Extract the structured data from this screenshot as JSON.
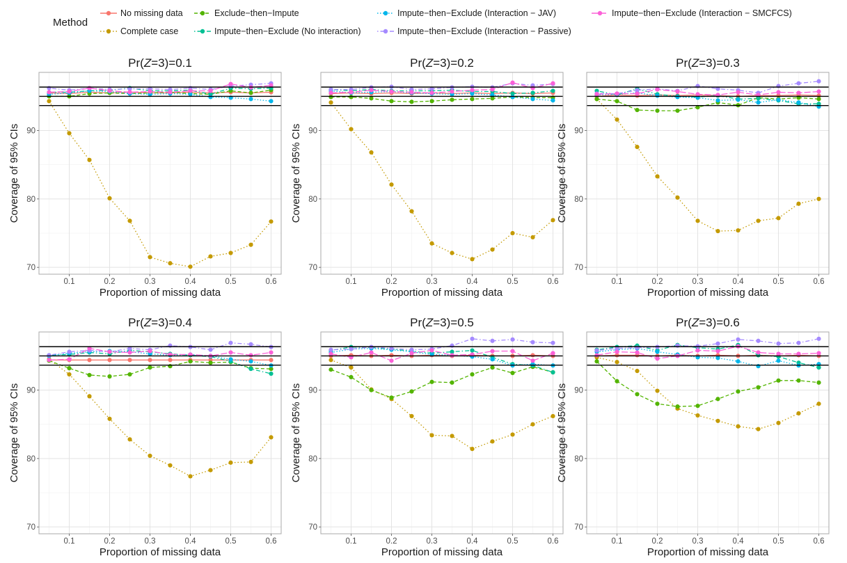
{
  "legend": {
    "title": "Method",
    "items": [
      {
        "label": "No missing data",
        "color": "#F8766D",
        "dash": "solid",
        "icon": "line-dot-icon"
      },
      {
        "label": "Complete case",
        "color": "#C49A00",
        "dash": "dotted",
        "icon": "line-dot-icon"
      },
      {
        "label": "Exclude−then−Impute",
        "color": "#53B400",
        "dash": "dashed",
        "icon": "line-dot-icon"
      },
      {
        "label": "Impute−then−Exclude (No interaction)",
        "color": "#00C094",
        "dash": "dotdash",
        "icon": "line-dot-icon"
      },
      {
        "label": "Impute−then−Exclude (Interaction − JAV)",
        "color": "#00B6EB",
        "dash": "dotdotted",
        "icon": "line-dot-icon"
      },
      {
        "label": "Impute−then−Exclude (Interaction − Passive)",
        "color": "#A58AFF",
        "dash": "dotdash",
        "icon": "line-dot-icon"
      },
      {
        "label": "Impute−then−Exclude (Interaction − SMCFCS)",
        "color": "#FB61D7",
        "dash": "longdash",
        "icon": "line-dot-icon"
      }
    ]
  },
  "chart_data": [
    {
      "type": "line",
      "title": "Pr(Z=3)=0.1",
      "title_prefix": "Pr(",
      "title_var": "Z",
      "title_suffix": "=3)=0.1",
      "xlabel": "Proportion of missing data",
      "ylabel": "Coverage of 95% CIs",
      "xlim": [
        0.025,
        0.625
      ],
      "ylim": [
        69,
        98.5
      ],
      "xticks": [
        "0.1",
        "0.2",
        "0.3",
        "0.4",
        "0.5",
        "0.6"
      ],
      "yticks": [
        "70",
        "80",
        "90"
      ],
      "hlines": [
        93.65,
        95,
        96.35
      ],
      "x": [
        0.05,
        0.1,
        0.15,
        0.2,
        0.25,
        0.3,
        0.35,
        0.4,
        0.45,
        0.5,
        0.55,
        0.6
      ],
      "series": [
        {
          "name": "No missing data",
          "values": [
            95.5,
            95.4,
            95.6,
            95.5,
            95.6,
            95.5,
            95.5,
            95.6,
            95.5,
            95.6,
            95.5,
            95.6
          ]
        },
        {
          "name": "Complete case",
          "values": [
            94.3,
            89.6,
            85.7,
            80.1,
            76.8,
            71.5,
            70.6,
            70.1,
            71.6,
            72.1,
            73.3,
            76.7
          ]
        },
        {
          "name": "Exclude−then−Impute",
          "values": [
            95.0,
            95.0,
            95.4,
            95.5,
            95.4,
            95.5,
            95.6,
            95.4,
            95.3,
            95.8,
            95.5,
            95.9
          ]
        },
        {
          "name": "Impute−then−Exclude (No interaction)",
          "values": [
            95.6,
            95.6,
            95.8,
            95.9,
            96.2,
            95.8,
            95.8,
            95.9,
            95.3,
            96.2,
            96.1,
            96.2
          ]
        },
        {
          "name": "Impute−then−Exclude (Interaction − JAV)",
          "values": [
            95.3,
            95.5,
            95.8,
            95.7,
            95.4,
            95.3,
            95.4,
            95.3,
            94.9,
            94.8,
            94.6,
            94.3
          ]
        },
        {
          "name": "Impute−then−Exclude (Interaction − Passive)",
          "values": [
            96.2,
            95.9,
            96.2,
            96.0,
            96.1,
            96.1,
            96.0,
            96.2,
            96.0,
            96.5,
            96.7,
            96.9
          ]
        },
        {
          "name": "Impute−then−Exclude (Interaction − SMCFCS)",
          "values": [
            95.6,
            95.7,
            96.2,
            95.8,
            95.6,
            95.7,
            95.6,
            95.8,
            95.8,
            96.8,
            96.3,
            96.6
          ]
        }
      ]
    },
    {
      "type": "line",
      "title": "Pr(Z=3)=0.2",
      "title_prefix": "Pr(",
      "title_var": "Z",
      "title_suffix": "=3)=0.2",
      "xlabel": "Proportion of missing data",
      "ylabel": "Coverage of 95% CIs",
      "xlim": [
        0.025,
        0.625
      ],
      "ylim": [
        69,
        98.5
      ],
      "xticks": [
        "0.1",
        "0.2",
        "0.3",
        "0.4",
        "0.5",
        "0.6"
      ],
      "yticks": [
        "70",
        "80",
        "90"
      ],
      "hlines": [
        93.65,
        95,
        96.35
      ],
      "x": [
        0.05,
        0.1,
        0.15,
        0.2,
        0.25,
        0.3,
        0.35,
        0.4,
        0.45,
        0.5,
        0.55,
        0.6
      ],
      "series": [
        {
          "name": "No missing data",
          "values": [
            95.4,
            95.5,
            95.4,
            95.5,
            95.4,
            95.5,
            95.4,
            95.5,
            95.4,
            95.5,
            95.4,
            95.5
          ]
        },
        {
          "name": "Complete case",
          "values": [
            94.1,
            90.2,
            86.8,
            82.1,
            78.2,
            73.5,
            72.1,
            71.2,
            72.6,
            75.0,
            74.4,
            76.9
          ]
        },
        {
          "name": "Exclude−then−Impute",
          "values": [
            94.9,
            94.9,
            94.7,
            94.3,
            94.2,
            94.3,
            94.5,
            94.6,
            94.7,
            94.9,
            94.8,
            94.8
          ]
        },
        {
          "name": "Impute−then−Exclude (No interaction)",
          "values": [
            96.0,
            95.8,
            96.0,
            95.8,
            95.8,
            95.8,
            95.9,
            95.7,
            95.7,
            95.4,
            95.5,
            95.8
          ]
        },
        {
          "name": "Impute−then−Exclude (Interaction − JAV)",
          "values": [
            95.8,
            95.5,
            95.6,
            95.7,
            95.5,
            95.4,
            95.3,
            95.4,
            95.2,
            94.9,
            94.6,
            94.4
          ]
        },
        {
          "name": "Impute−then−Exclude (Interaction − Passive)",
          "values": [
            96.0,
            96.0,
            96.3,
            96.4,
            96.0,
            96.1,
            96.3,
            96.4,
            96.3,
            96.9,
            96.6,
            96.8
          ]
        },
        {
          "name": "Impute−then−Exclude (Interaction − SMCFCS)",
          "values": [
            95.5,
            95.6,
            95.9,
            95.7,
            95.6,
            95.5,
            95.7,
            95.9,
            96.0,
            97.0,
            96.2,
            96.9
          ]
        }
      ]
    },
    {
      "type": "line",
      "title": "Pr(Z=3)=0.3",
      "title_prefix": "Pr(",
      "title_var": "Z",
      "title_suffix": "=3)=0.3",
      "xlabel": "Proportion of missing data",
      "ylabel": "Coverage of 95% CIs",
      "xlim": [
        0.025,
        0.625
      ],
      "ylim": [
        69,
        98.5
      ],
      "xticks": [
        "0.1",
        "0.2",
        "0.3",
        "0.4",
        "0.5",
        "0.6"
      ],
      "yticks": [
        "70",
        "80",
        "90"
      ],
      "hlines": [
        93.65,
        95,
        96.35
      ],
      "x": [
        0.05,
        0.1,
        0.15,
        0.2,
        0.25,
        0.3,
        0.35,
        0.4,
        0.45,
        0.5,
        0.55,
        0.6
      ],
      "series": [
        {
          "name": "No missing data",
          "values": [
            95.0,
            95.2,
            95.1,
            95.2,
            95.1,
            95.2,
            95.1,
            95.0,
            95.1,
            95.1,
            95.2,
            95.1
          ]
        },
        {
          "name": "Complete case",
          "values": [
            94.6,
            91.6,
            87.6,
            83.3,
            80.2,
            76.8,
            75.3,
            75.4,
            76.8,
            77.2,
            79.3,
            80.0
          ]
        },
        {
          "name": "Exclude−then−Impute",
          "values": [
            94.6,
            94.3,
            93.0,
            92.9,
            92.9,
            93.4,
            94.1,
            93.7,
            94.8,
            94.6,
            94.8,
            94.6
          ]
        },
        {
          "name": "Impute−then−Exclude (No interaction)",
          "values": [
            95.8,
            95.2,
            96.1,
            95.3,
            95.0,
            94.9,
            95.1,
            94.6,
            94.7,
            94.4,
            93.9,
            93.9
          ]
        },
        {
          "name": "Impute−then−Exclude (Interaction − JAV)",
          "values": [
            95.2,
            95.3,
            95.5,
            95.1,
            94.9,
            94.8,
            94.4,
            94.5,
            94.1,
            94.5,
            94.1,
            93.5
          ]
        },
        {
          "name": "Impute−then−Exclude (Interaction − Passive)",
          "values": [
            95.4,
            95.4,
            95.9,
            96.1,
            95.8,
            96.5,
            96.1,
            95.9,
            95.5,
            96.5,
            96.9,
            97.2
          ]
        },
        {
          "name": "Impute−then−Exclude (Interaction − SMCFCS)",
          "values": [
            95.3,
            95.4,
            95.4,
            96.0,
            95.7,
            95.3,
            95.2,
            95.6,
            95.2,
            95.6,
            95.5,
            95.7
          ]
        }
      ]
    },
    {
      "type": "line",
      "title": "Pr(Z=3)=0.4",
      "title_prefix": "Pr(",
      "title_var": "Z",
      "title_suffix": "=3)=0.4",
      "xlabel": "Proportion of missing data",
      "ylabel": "Coverage of 95% CIs",
      "xlim": [
        0.025,
        0.625
      ],
      "ylim": [
        69,
        98.5
      ],
      "xticks": [
        "0.1",
        "0.2",
        "0.3",
        "0.4",
        "0.5",
        "0.6"
      ],
      "yticks": [
        "70",
        "80",
        "90"
      ],
      "hlines": [
        93.65,
        95,
        96.35
      ],
      "x": [
        0.05,
        0.1,
        0.15,
        0.2,
        0.25,
        0.3,
        0.35,
        0.4,
        0.45,
        0.5,
        0.55,
        0.6
      ],
      "series": [
        {
          "name": "No missing data",
          "values": [
            94.4,
            94.4,
            94.4,
            94.4,
            94.4,
            94.4,
            94.4,
            94.4,
            94.4,
            94.4,
            94.4,
            94.4
          ]
        },
        {
          "name": "Complete case",
          "values": [
            94.5,
            92.3,
            89.1,
            85.8,
            82.8,
            80.4,
            79.0,
            77.4,
            78.3,
            79.4,
            79.5,
            83.1
          ]
        },
        {
          "name": "Exclude−then−Impute",
          "values": [
            94.3,
            93.2,
            92.2,
            92.0,
            92.3,
            93.3,
            93.5,
            94.2,
            94.0,
            94.1,
            93.2,
            93.1
          ]
        },
        {
          "name": "Impute−then−Exclude (No interaction)",
          "values": [
            95.1,
            95.2,
            95.5,
            95.3,
            95.8,
            95.6,
            95.3,
            95.1,
            94.9,
            94.2,
            93.1,
            92.4
          ]
        },
        {
          "name": "Impute−then−Exclude (Interaction − JAV)",
          "values": [
            95.0,
            95.4,
            95.6,
            95.7,
            95.6,
            95.3,
            95.1,
            95.2,
            95.0,
            94.5,
            94.2,
            93.6
          ]
        },
        {
          "name": "Impute−then−Exclude (Interaction − Passive)",
          "values": [
            95.1,
            95.6,
            95.8,
            95.6,
            96.1,
            95.9,
            96.5,
            96.3,
            95.9,
            96.9,
            96.7,
            96.3
          ]
        },
        {
          "name": "Impute−then−Exclude (Interaction − SMCFCS)",
          "values": [
            94.4,
            94.5,
            96.1,
            95.6,
            95.5,
            95.7,
            95.2,
            95.2,
            95.0,
            95.5,
            95.1,
            95.5
          ]
        }
      ]
    },
    {
      "type": "line",
      "title": "Pr(Z=3)=0.5",
      "title_prefix": "Pr(",
      "title_var": "Z",
      "title_suffix": "=3)=0.5",
      "xlabel": "Proportion of missing data",
      "ylabel": "Coverage of 95% CIs",
      "xlim": [
        0.025,
        0.625
      ],
      "ylim": [
        69,
        98.5
      ],
      "xticks": [
        "0.1",
        "0.2",
        "0.3",
        "0.4",
        "0.5",
        "0.6"
      ],
      "yticks": [
        "70",
        "80",
        "90"
      ],
      "hlines": [
        93.65,
        95,
        96.35
      ],
      "x": [
        0.05,
        0.1,
        0.15,
        0.2,
        0.25,
        0.3,
        0.35,
        0.4,
        0.45,
        0.5,
        0.55,
        0.6
      ],
      "series": [
        {
          "name": "No missing data",
          "values": [
            95.0,
            95.1,
            95.0,
            95.1,
            95.0,
            95.1,
            95.0,
            95.1,
            95.0,
            95.0,
            95.1,
            95.0
          ]
        },
        {
          "name": "Complete case",
          "values": [
            94.4,
            93.3,
            90.1,
            88.7,
            86.2,
            83.4,
            83.3,
            81.4,
            82.5,
            83.5,
            85.0,
            86.2
          ]
        },
        {
          "name": "Exclude−then−Impute",
          "values": [
            93.0,
            91.9,
            90.0,
            88.9,
            89.8,
            91.2,
            91.1,
            92.3,
            93.3,
            92.5,
            93.4,
            92.6
          ]
        },
        {
          "name": "Impute−then−Exclude (No interaction)",
          "values": [
            95.8,
            96.3,
            96.2,
            96.0,
            95.7,
            95.4,
            95.6,
            95.8,
            94.8,
            93.8,
            93.6,
            92.6
          ]
        },
        {
          "name": "Impute−then−Exclude (Interaction − JAV)",
          "values": [
            95.5,
            96.0,
            96.1,
            95.9,
            95.6,
            95.2,
            95.1,
            94.9,
            94.5,
            93.6,
            93.8,
            93.6
          ]
        },
        {
          "name": "Impute−then−Exclude (Interaction − Passive)",
          "values": [
            95.9,
            96.0,
            96.3,
            96.1,
            95.9,
            96.0,
            96.5,
            97.5,
            97.2,
            97.4,
            97.0,
            96.9
          ]
        },
        {
          "name": "Impute−then−Exclude (Interaction − SMCFCS)",
          "values": [
            95.3,
            94.8,
            95.5,
            94.3,
            95.4,
            95.8,
            95.1,
            95.2,
            95.7,
            95.7,
            94.3,
            95.4
          ]
        }
      ]
    },
    {
      "type": "line",
      "title": "Pr(Z=3)=0.6",
      "title_prefix": "Pr(",
      "title_var": "Z",
      "title_suffix": "=3)=0.6",
      "xlabel": "Proportion of missing data",
      "ylabel": "Coverage of 95% CIs",
      "xlim": [
        0.025,
        0.625
      ],
      "ylim": [
        69,
        98.5
      ],
      "xticks": [
        "0.1",
        "0.2",
        "0.3",
        "0.4",
        "0.5",
        "0.6"
      ],
      "yticks": [
        "70",
        "80",
        "90"
      ],
      "hlines": [
        93.65,
        95,
        96.35
      ],
      "x": [
        0.05,
        0.1,
        0.15,
        0.2,
        0.25,
        0.3,
        0.35,
        0.4,
        0.45,
        0.5,
        0.55,
        0.6
      ],
      "series": [
        {
          "name": "No missing data",
          "values": [
            95.0,
            95.1,
            95.1,
            95.0,
            95.1,
            95.0,
            95.1,
            95.0,
            95.1,
            95.0,
            95.1,
            95.0
          ]
        },
        {
          "name": "Complete case",
          "values": [
            94.8,
            94.1,
            92.8,
            89.9,
            87.3,
            86.3,
            85.5,
            84.7,
            84.3,
            85.2,
            86.6,
            88.0
          ]
        },
        {
          "name": "Exclude−then−Impute",
          "values": [
            94.2,
            91.3,
            89.4,
            88.0,
            87.6,
            87.7,
            88.7,
            89.8,
            90.4,
            91.4,
            91.4,
            91.1
          ]
        },
        {
          "name": "Impute−then−Exclude (No interaction)",
          "values": [
            95.9,
            96.3,
            96.5,
            95.8,
            96.6,
            96.2,
            96.0,
            96.6,
            95.1,
            94.9,
            94.0,
            93.3
          ]
        },
        {
          "name": "Impute−then−Exclude (Interaction − JAV)",
          "values": [
            95.6,
            95.9,
            96.1,
            95.6,
            95.2,
            94.8,
            94.7,
            94.2,
            93.5,
            94.3,
            93.6,
            93.8
          ]
        },
        {
          "name": "Impute−then−Exclude (Interaction − Passive)",
          "values": [
            95.8,
            96.1,
            96.2,
            96.3,
            96.5,
            96.4,
            96.8,
            97.4,
            97.2,
            96.8,
            96.9,
            97.5
          ]
        },
        {
          "name": "Impute−then−Exclude (Interaction − SMCFCS)",
          "values": [
            95.1,
            95.6,
            95.5,
            94.6,
            95.0,
            95.8,
            95.7,
            96.4,
            95.5,
            95.3,
            95.3,
            95.4
          ]
        }
      ]
    }
  ]
}
